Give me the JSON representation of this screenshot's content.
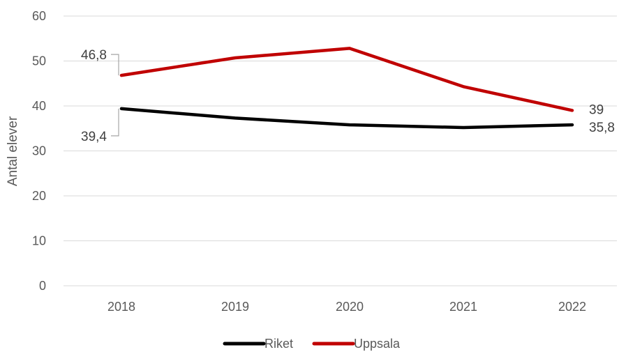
{
  "chart_data": {
    "type": "line",
    "categories": [
      "2018",
      "2019",
      "2020",
      "2021",
      "2022"
    ],
    "series": [
      {
        "name": "Riket",
        "color": "#000000",
        "values": [
          39.4,
          37.3,
          35.8,
          35.2,
          35.8
        ]
      },
      {
        "name": "Uppsala",
        "color": "#C00000",
        "values": [
          46.8,
          50.7,
          52.8,
          44.3,
          39.0
        ]
      }
    ],
    "data_labels": [
      {
        "series": "Uppsala",
        "category": "2018",
        "text": "46,8"
      },
      {
        "series": "Riket",
        "category": "2018",
        "text": "39,4"
      },
      {
        "series": "Uppsala",
        "category": "2022",
        "text": "39"
      },
      {
        "series": "Riket",
        "category": "2022",
        "text": "35,8"
      }
    ],
    "title": "",
    "xlabel": "",
    "ylabel": "Antal elever",
    "ylim": [
      0,
      60
    ],
    "yticks": [
      "0",
      "10",
      "20",
      "30",
      "40",
      "50",
      "60"
    ],
    "grid": true,
    "legend_position": "bottom"
  }
}
